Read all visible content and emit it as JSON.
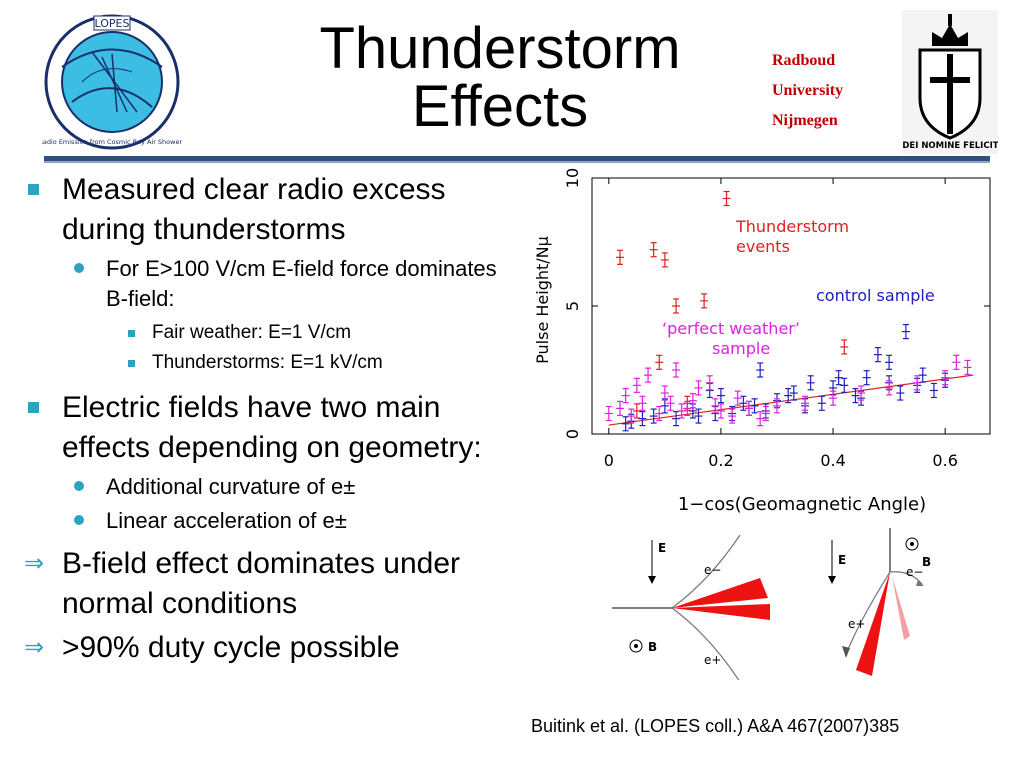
{
  "title": {
    "line1": "Thunderstorm",
    "line2": "Effects"
  },
  "institution": {
    "line1": "Radboud",
    "line2": "University",
    "line3": "Nijmegen"
  },
  "logos": {
    "lopes": {
      "name": "LOPES",
      "motto": "Radio Emission from Cosmic Ray Air Showers"
    },
    "radboud": {
      "motto": "IN DEI NOMINE FELICITER"
    }
  },
  "bullets": {
    "b1": "Measured clear radio excess during thunderstorms",
    "b1_sub1": "For E>100 V/cm E-field force dominates B-field:",
    "b1_sub1_a": "Fair weather: E=1 V/cm",
    "b1_sub1_b": "Thunderstorms: E=1 kV/cm",
    "b2": "Electric fields have two main effects depending on geometry:",
    "b2_sub1": "Additional curvature of e±",
    "b2_sub2": "Linear acceleration of e±",
    "b3": "B-field effect dominates under normal conditions",
    "b4": ">90% duty cycle possible",
    "arrow_symbol": "⇒"
  },
  "citation": "Buitink et al. (LOPES coll.) A&A 467(2007)385",
  "colors": {
    "accent": "#2ba3c2",
    "rule": "#2f4f7f",
    "radboud": "#c00000",
    "thunder": "#e02020",
    "control": "#2020c0",
    "perfect": "#e020e0"
  },
  "chart_data": {
    "type": "scatter",
    "xlabel": "1−cos(Geomagnetic Angle)",
    "ylabel": "Pulse Height/Nμ",
    "xlim": [
      -0.03,
      0.68
    ],
    "ylim": [
      0,
      10
    ],
    "xticks": [
      "0",
      "0.2",
      "0.4",
      "0.6"
    ],
    "yticks": [
      "0",
      "5",
      "10"
    ],
    "annotations": {
      "thunder": "Thunderstorm events",
      "control": "control sample",
      "perfect": "‘perfect weather’ sample"
    },
    "fit_line": {
      "x": [
        0.0,
        0.65
      ],
      "y": [
        0.35,
        2.3
      ]
    },
    "series": [
      {
        "key": "thunderstorm",
        "color": "#e02020",
        "points": [
          [
            0.21,
            9.2
          ],
          [
            0.02,
            6.9
          ],
          [
            0.08,
            7.2
          ],
          [
            0.1,
            6.8
          ],
          [
            0.12,
            5.0
          ],
          [
            0.17,
            5.2
          ],
          [
            0.09,
            2.8
          ],
          [
            0.42,
            3.4
          ],
          [
            0.05,
            0.9
          ],
          [
            0.14,
            1.2
          ]
        ]
      },
      {
        "key": "control",
        "color": "#2020c0",
        "points": [
          [
            0.53,
            4.0
          ],
          [
            0.27,
            2.5
          ],
          [
            0.48,
            3.1
          ],
          [
            0.5,
            2.8
          ],
          [
            0.36,
            2.0
          ],
          [
            0.4,
            1.8
          ],
          [
            0.44,
            1.5
          ],
          [
            0.46,
            2.2
          ],
          [
            0.55,
            1.9
          ],
          [
            0.58,
            1.7
          ],
          [
            0.6,
            2.1
          ],
          [
            0.33,
            1.6
          ],
          [
            0.3,
            1.3
          ],
          [
            0.25,
            1.0
          ],
          [
            0.22,
            0.8
          ],
          [
            0.2,
            1.5
          ],
          [
            0.15,
            0.9
          ],
          [
            0.12,
            0.6
          ],
          [
            0.08,
            0.7
          ],
          [
            0.04,
            0.5
          ],
          [
            0.18,
            1.7
          ],
          [
            0.38,
            1.2
          ],
          [
            0.42,
            1.9
          ],
          [
            0.5,
            2.0
          ],
          [
            0.35,
            1.1
          ],
          [
            0.28,
            0.9
          ],
          [
            0.24,
            1.2
          ],
          [
            0.16,
            0.7
          ],
          [
            0.1,
            1.1
          ],
          [
            0.06,
            0.6
          ],
          [
            0.03,
            0.4
          ],
          [
            0.52,
            1.6
          ],
          [
            0.56,
            2.3
          ],
          [
            0.45,
            1.4
          ],
          [
            0.41,
            2.2
          ],
          [
            0.32,
            1.5
          ],
          [
            0.26,
            1.1
          ],
          [
            0.19,
            0.8
          ]
        ]
      },
      {
        "key": "perfect",
        "color": "#e020e0",
        "points": [
          [
            0.62,
            2.8
          ],
          [
            0.64,
            2.6
          ],
          [
            0.6,
            2.2
          ],
          [
            0.55,
            2.0
          ],
          [
            0.5,
            1.8
          ],
          [
            0.45,
            1.6
          ],
          [
            0.4,
            1.4
          ],
          [
            0.35,
            1.2
          ],
          [
            0.3,
            1.1
          ],
          [
            0.25,
            1.0
          ],
          [
            0.2,
            0.9
          ],
          [
            0.15,
            1.3
          ],
          [
            0.1,
            1.6
          ],
          [
            0.07,
            2.3
          ],
          [
            0.05,
            1.9
          ],
          [
            0.12,
            2.5
          ],
          [
            0.18,
            2.0
          ],
          [
            0.14,
            1.0
          ],
          [
            0.09,
            0.8
          ],
          [
            0.04,
            0.7
          ],
          [
            0.0,
            0.8
          ],
          [
            0.02,
            1.0
          ],
          [
            0.22,
            0.7
          ],
          [
            0.28,
            0.8
          ],
          [
            0.16,
            1.8
          ],
          [
            0.11,
            1.2
          ],
          [
            0.13,
            0.9
          ],
          [
            0.19,
            1.1
          ],
          [
            0.23,
            1.4
          ],
          [
            0.27,
            0.6
          ],
          [
            0.06,
            1.2
          ],
          [
            0.03,
            1.5
          ]
        ]
      }
    ]
  },
  "diagram": {
    "left": {
      "e_label": "E",
      "eminus": "e−",
      "eplus": "e+",
      "b_label": "B"
    },
    "right": {
      "e_label": "E",
      "eminus": "e−",
      "eplus": "e+",
      "b_label": "B"
    }
  }
}
